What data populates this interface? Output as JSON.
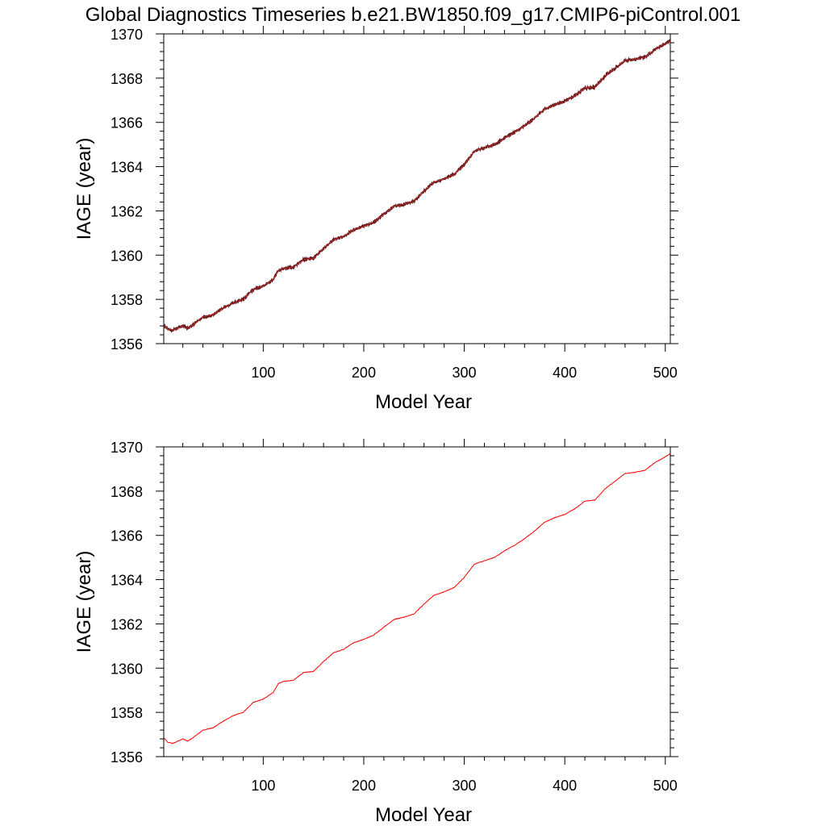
{
  "figure": {
    "title": "Global Diagnostics Timeseries b.e21.BW1850.f09_g17.CMIP6-piControl.001"
  },
  "chart_data": [
    {
      "type": "line",
      "title": "",
      "xlabel": "Model Year",
      "ylabel": "IAGE (year)",
      "xlim": [
        1,
        505
      ],
      "ylim": [
        1356,
        1370
      ],
      "x_ticks": [
        100,
        200,
        300,
        400,
        500
      ],
      "y_ticks": [
        1356,
        1358,
        1360,
        1362,
        1364,
        1366,
        1368,
        1370
      ],
      "grid": false,
      "series": [
        {
          "x": [
            1,
            5,
            10,
            15,
            20,
            25,
            30,
            40,
            50,
            60,
            70,
            80,
            90,
            100,
            110,
            115,
            120,
            130,
            140,
            150,
            160,
            170,
            180,
            190,
            200,
            210,
            220,
            230,
            240,
            250,
            260,
            270,
            280,
            290,
            300,
            310,
            320,
            330,
            340,
            350,
            360,
            370,
            380,
            390,
            400,
            410,
            420,
            430,
            440,
            450,
            460,
            470,
            480,
            490,
            500,
            505
          ],
          "y": [
            1356.85,
            1356.65,
            1356.6,
            1356.7,
            1356.8,
            1356.7,
            1356.85,
            1357.2,
            1357.3,
            1357.6,
            1357.85,
            1358.0,
            1358.45,
            1358.6,
            1358.9,
            1359.3,
            1359.4,
            1359.45,
            1359.8,
            1359.85,
            1360.3,
            1360.7,
            1360.85,
            1361.15,
            1361.3,
            1361.5,
            1361.85,
            1362.2,
            1362.3,
            1362.45,
            1362.9,
            1363.3,
            1363.45,
            1363.65,
            1364.1,
            1364.7,
            1364.85,
            1365.0,
            1365.3,
            1365.55,
            1365.85,
            1366.2,
            1366.6,
            1366.8,
            1366.95,
            1367.2,
            1367.55,
            1367.6,
            1368.1,
            1368.45,
            1368.8,
            1368.85,
            1368.95,
            1369.3,
            1369.55,
            1369.7
          ],
          "color": "#5a0f0f",
          "overlay_color": "#d43030",
          "noise": true
        }
      ]
    },
    {
      "type": "line",
      "title": "",
      "xlabel": "Model Year",
      "ylabel": "IAGE (year)",
      "xlim": [
        1,
        505
      ],
      "ylim": [
        1356,
        1370
      ],
      "x_ticks": [
        100,
        200,
        300,
        400,
        500
      ],
      "y_ticks": [
        1356,
        1358,
        1360,
        1362,
        1364,
        1366,
        1368,
        1370
      ],
      "grid": false,
      "series": [
        {
          "x": [
            1,
            5,
            10,
            15,
            20,
            25,
            30,
            40,
            50,
            60,
            70,
            80,
            90,
            100,
            110,
            115,
            120,
            130,
            140,
            150,
            160,
            170,
            180,
            190,
            200,
            210,
            220,
            230,
            240,
            250,
            260,
            270,
            280,
            290,
            300,
            310,
            320,
            330,
            340,
            350,
            360,
            370,
            380,
            390,
            400,
            410,
            420,
            430,
            440,
            450,
            460,
            470,
            480,
            490,
            500,
            505
          ],
          "y": [
            1356.85,
            1356.65,
            1356.6,
            1356.7,
            1356.8,
            1356.7,
            1356.85,
            1357.2,
            1357.3,
            1357.6,
            1357.85,
            1358.0,
            1358.45,
            1358.6,
            1358.9,
            1359.3,
            1359.4,
            1359.45,
            1359.8,
            1359.85,
            1360.3,
            1360.7,
            1360.85,
            1361.15,
            1361.3,
            1361.5,
            1361.85,
            1362.2,
            1362.3,
            1362.45,
            1362.9,
            1363.3,
            1363.45,
            1363.65,
            1364.1,
            1364.7,
            1364.85,
            1365.0,
            1365.3,
            1365.55,
            1365.85,
            1366.2,
            1366.6,
            1366.8,
            1366.95,
            1367.2,
            1367.55,
            1367.6,
            1368.1,
            1368.45,
            1368.8,
            1368.85,
            1368.95,
            1369.3,
            1369.55,
            1369.7
          ],
          "color": "#ff0000",
          "noise": false
        }
      ]
    }
  ]
}
